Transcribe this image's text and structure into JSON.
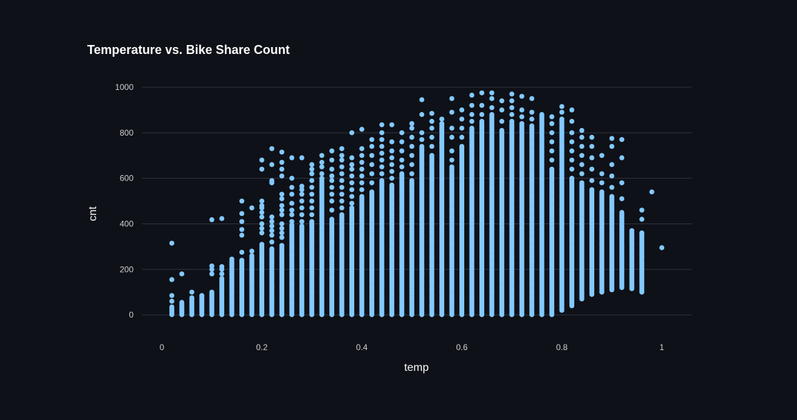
{
  "colors": {
    "background": "#0e1117",
    "grid": "#31333f",
    "point": "#83c9ff",
    "text": "#fafafa",
    "tick_text": "#d0d0d5"
  },
  "chart_data": {
    "type": "scatter",
    "title": "Temperature vs. Bike Share Count",
    "xlabel": "temp",
    "ylabel": "cnt",
    "xlim": [
      -0.04,
      1.06
    ],
    "ylim": [
      -100,
      1000
    ],
    "xticks": [
      0,
      0.2,
      0.4,
      0.6,
      0.8,
      1
    ],
    "xtick_labels": [
      "0",
      "0.2",
      "0.4",
      "0.6",
      "0.8",
      "1"
    ],
    "yticks": [
      0,
      200,
      400,
      600,
      800,
      1000
    ],
    "ytick_labels": [
      "0",
      "200",
      "400",
      "600",
      "800",
      "1000"
    ],
    "grid": "horizontal",
    "columns": [
      {
        "temp": 0.02,
        "min": 1,
        "dense_max": 35,
        "outliers": [
          60,
          85,
          155,
          315
        ]
      },
      {
        "temp": 0.04,
        "min": 1,
        "dense_max": 55,
        "outliers": [
          180
        ]
      },
      {
        "temp": 0.06,
        "min": 1,
        "dense_max": 75,
        "outliers": [
          100
        ]
      },
      {
        "temp": 0.08,
        "min": 1,
        "dense_max": 85,
        "outliers": []
      },
      {
        "temp": 0.1,
        "min": 1,
        "dense_max": 100,
        "outliers": [
          180,
          200,
          215,
          418
        ]
      },
      {
        "temp": 0.12,
        "min": 1,
        "dense_max": 160,
        "outliers": [
          180,
          200,
          212,
          423
        ]
      },
      {
        "temp": 0.14,
        "min": 1,
        "dense_max": 245,
        "outliers": []
      },
      {
        "temp": 0.16,
        "min": 1,
        "dense_max": 240,
        "outliers": [
          275,
          350,
          375,
          410,
          445,
          500
        ]
      },
      {
        "temp": 0.18,
        "min": 1,
        "dense_max": 260,
        "outliers": [
          280,
          470
        ]
      },
      {
        "temp": 0.2,
        "min": 1,
        "dense_max": 310,
        "outliers": [
          360,
          380,
          400,
          430,
          450,
          470,
          480,
          500,
          640,
          680
        ]
      },
      {
        "temp": 0.22,
        "min": 1,
        "dense_max": 290,
        "outliers": [
          320,
          350,
          370,
          390,
          410,
          430,
          580,
          590,
          660,
          730
        ]
      },
      {
        "temp": 0.24,
        "min": 1,
        "dense_max": 305,
        "outliers": [
          340,
          360,
          380,
          400,
          440,
          460,
          480,
          510,
          530,
          610,
          640,
          670,
          715
        ]
      },
      {
        "temp": 0.26,
        "min": 1,
        "dense_max": 395,
        "outliers": [
          410,
          440,
          460,
          490,
          530,
          560,
          600,
          690
        ]
      },
      {
        "temp": 0.28,
        "min": 1,
        "dense_max": 390,
        "outliers": [
          410,
          440,
          470,
          500,
          530,
          550,
          565,
          690
        ]
      },
      {
        "temp": 0.3,
        "min": 1,
        "dense_max": 410,
        "outliers": [
          440,
          470,
          500,
          530,
          560,
          590,
          620,
          640,
          660
        ]
      },
      {
        "temp": 0.32,
        "min": 1,
        "dense_max": 600,
        "outliers": [
          620,
          650,
          670,
          700
        ]
      },
      {
        "temp": 0.34,
        "min": 1,
        "dense_max": 420,
        "outliers": [
          460,
          500,
          530,
          560,
          590,
          610,
          640,
          680,
          720
        ]
      },
      {
        "temp": 0.36,
        "min": 1,
        "dense_max": 440,
        "outliers": [
          470,
          500,
          530,
          560,
          590,
          620,
          650,
          680,
          700,
          730
        ]
      },
      {
        "temp": 0.38,
        "min": 1,
        "dense_max": 470,
        "outliers": [
          490,
          520,
          550,
          580,
          610,
          640,
          660,
          690,
          800
        ]
      },
      {
        "temp": 0.4,
        "min": 1,
        "dense_max": 520,
        "outliers": [
          550,
          580,
          610,
          640,
          670,
          700,
          730,
          815
        ]
      },
      {
        "temp": 0.42,
        "min": 1,
        "dense_max": 540,
        "outliers": [
          580,
          620,
          660,
          700,
          740,
          770
        ]
      },
      {
        "temp": 0.44,
        "min": 1,
        "dense_max": 590,
        "outliers": [
          620,
          650,
          680,
          710,
          740,
          770,
          800,
          835
        ]
      },
      {
        "temp": 0.46,
        "min": 1,
        "dense_max": 570,
        "outliers": [
          600,
          630,
          660,
          690,
          720,
          760,
          835
        ]
      },
      {
        "temp": 0.48,
        "min": 1,
        "dense_max": 620,
        "outliers": [
          650,
          680,
          720,
          760,
          800
        ]
      },
      {
        "temp": 0.5,
        "min": 1,
        "dense_max": 590,
        "outliers": [
          620,
          660,
          700,
          740,
          780,
          820,
          840
        ]
      },
      {
        "temp": 0.52,
        "min": 1,
        "dense_max": 740,
        "outliers": [
          770,
          800,
          880,
          945
        ]
      },
      {
        "temp": 0.54,
        "min": 1,
        "dense_max": 700,
        "outliers": [
          740,
          780,
          820,
          850,
          885
        ]
      },
      {
        "temp": 0.56,
        "min": 1,
        "dense_max": 840,
        "outliers": [
          860
        ]
      },
      {
        "temp": 0.58,
        "min": 1,
        "dense_max": 650,
        "outliers": [
          680,
          720,
          780,
          820,
          890,
          950
        ]
      },
      {
        "temp": 0.6,
        "min": 1,
        "dense_max": 740,
        "outliers": [
          780,
          820,
          860,
          900
        ]
      },
      {
        "temp": 0.62,
        "min": 1,
        "dense_max": 820,
        "outliers": [
          850,
          880,
          920,
          965
        ]
      },
      {
        "temp": 0.64,
        "min": 1,
        "dense_max": 850,
        "outliers": [
          880,
          920,
          975
        ]
      },
      {
        "temp": 0.66,
        "min": 1,
        "dense_max": 880,
        "outliers": [
          910,
          950,
          975
        ]
      },
      {
        "temp": 0.68,
        "min": 1,
        "dense_max": 810,
        "outliers": [
          850,
          900,
          940
        ]
      },
      {
        "temp": 0.7,
        "min": 1,
        "dense_max": 850,
        "outliers": [
          880,
          910,
          940,
          970
        ]
      },
      {
        "temp": 0.72,
        "min": 1,
        "dense_max": 840,
        "outliers": [
          870,
          900,
          960
        ]
      },
      {
        "temp": 0.74,
        "min": 1,
        "dense_max": 830,
        "outliers": [
          860,
          890,
          950
        ]
      },
      {
        "temp": 0.76,
        "min": 1,
        "dense_max": 880,
        "outliers": []
      },
      {
        "temp": 0.78,
        "min": 1,
        "dense_max": 640,
        "outliers": [
          680,
          720,
          760,
          800,
          840,
          870
        ]
      },
      {
        "temp": 0.8,
        "min": 20,
        "dense_max": 860,
        "outliers": [
          890,
          915
        ]
      },
      {
        "temp": 0.82,
        "min": 40,
        "dense_max": 600,
        "outliers": [
          640,
          680,
          720,
          760,
          800,
          850,
          900
        ]
      },
      {
        "temp": 0.84,
        "min": 70,
        "dense_max": 580,
        "outliers": [
          620,
          660,
          700,
          740,
          780,
          810
        ]
      },
      {
        "temp": 0.86,
        "min": 90,
        "dense_max": 550,
        "outliers": [
          590,
          640,
          690,
          740,
          780
        ]
      },
      {
        "temp": 0.88,
        "min": 100,
        "dense_max": 540,
        "outliers": [
          580,
          620,
          700
        ]
      },
      {
        "temp": 0.9,
        "min": 110,
        "dense_max": 520,
        "outliers": [
          560,
          610,
          660,
          740,
          775
        ]
      },
      {
        "temp": 0.92,
        "min": 120,
        "dense_max": 450,
        "outliers": [
          510,
          580,
          690,
          770
        ]
      },
      {
        "temp": 0.94,
        "min": 115,
        "dense_max": 370,
        "outliers": []
      },
      {
        "temp": 0.96,
        "min": 100,
        "dense_max": 360,
        "outliers": [
          420,
          460
        ]
      },
      {
        "temp": 0.98,
        "min": 540,
        "dense_max": 540,
        "outliers": []
      },
      {
        "temp": 1.0,
        "min": 295,
        "dense_max": 295,
        "outliers": []
      }
    ]
  }
}
